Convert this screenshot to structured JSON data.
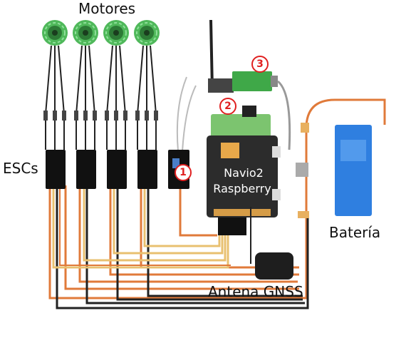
{
  "labels": {
    "motores": "Motores",
    "escs": "ESCs",
    "navio": "Navio2",
    "raspberry": "Raspberry",
    "bateria": "Batería",
    "antena": "Antena GNSS"
  },
  "badges": [
    "1",
    "2",
    "3"
  ],
  "colors": {
    "motor": "#4fb85a",
    "esc": "#111111",
    "wire_orange": "#e07a3a",
    "wire_black": "#222222",
    "wire_yellow": "#e8c070",
    "battery": "#2f7fe0",
    "board": "#2c2c2c",
    "radio": "#3fa848",
    "badge": "#e02020"
  },
  "icons": [
    "motor-icon",
    "esc-icon",
    "battery-icon",
    "antenna-icon",
    "gnss-icon",
    "radio-icon",
    "board-icon"
  ]
}
